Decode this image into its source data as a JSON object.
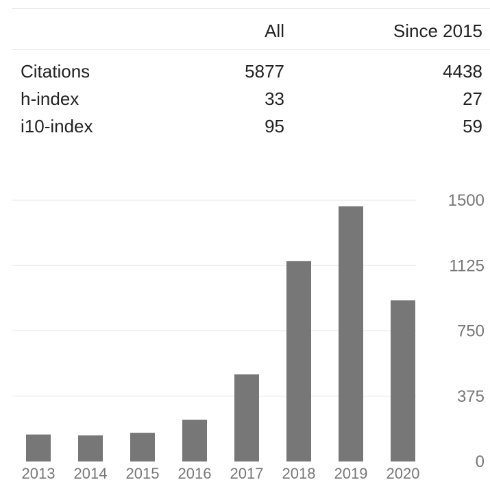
{
  "stats_table": {
    "headers": [
      "",
      "All",
      "Since 2015"
    ],
    "rows": [
      {
        "label": "Citations",
        "all": "5877",
        "since": "4438"
      },
      {
        "label": "h-index",
        "all": "33",
        "since": "27"
      },
      {
        "label": "i10-index",
        "all": "95",
        "since": "59"
      }
    ]
  },
  "colors": {
    "bar": "#777777",
    "grid": "#e6e6e6",
    "tick_text": "#777777",
    "text": "#222222"
  },
  "chart_data": {
    "type": "bar",
    "categories": [
      "2013",
      "2014",
      "2015",
      "2016",
      "2017",
      "2018",
      "2019",
      "2020"
    ],
    "values": [
      155,
      150,
      165,
      240,
      500,
      1150,
      1465,
      925
    ],
    "ylim": [
      0,
      1500
    ],
    "yticks": [
      0,
      375,
      750,
      1125,
      1500
    ],
    "ytick_labels": [
      "0",
      "375",
      "750",
      "1125",
      "1500"
    ],
    "grid": true,
    "y_axis_side": "right",
    "title": "",
    "xlabel": "",
    "ylabel": ""
  }
}
